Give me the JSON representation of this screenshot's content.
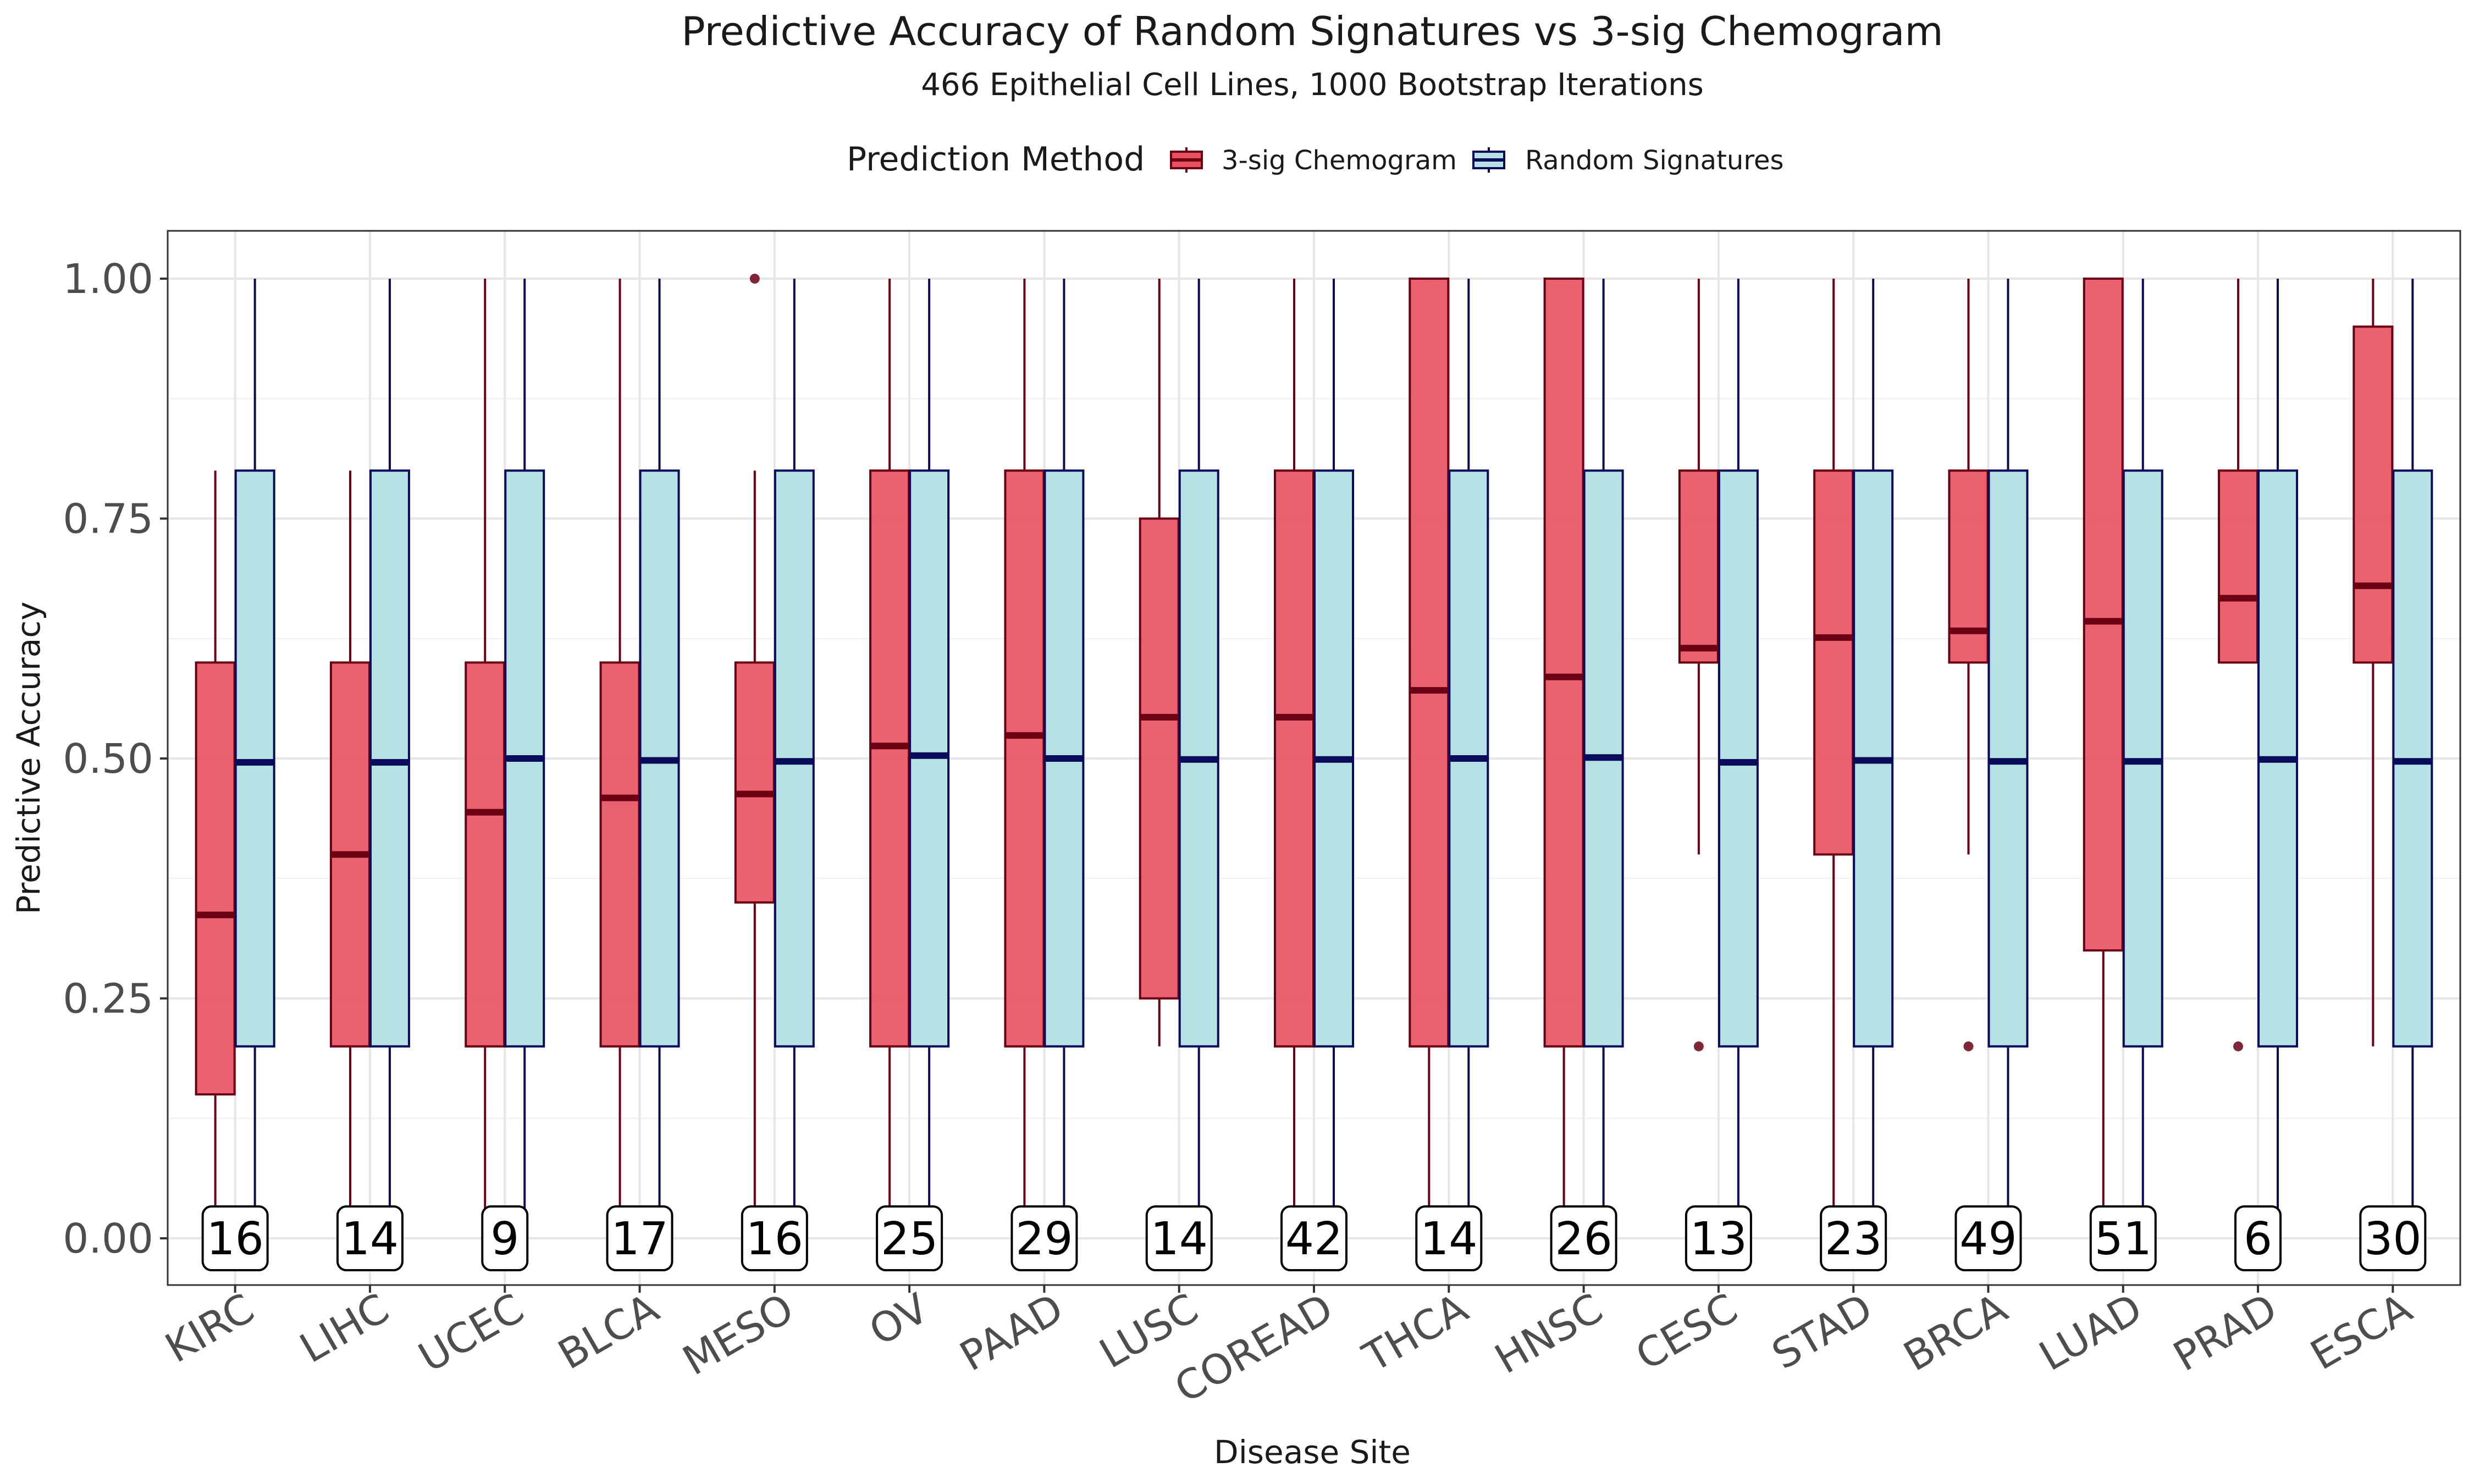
{
  "chart_data": {
    "type": "box",
    "title": "Predictive Accuracy of Random Signatures vs 3-sig Chemogram",
    "subtitle": "466 Epithelial Cell Lines, 1000 Bootstrap Iterations",
    "xlabel": "Disease Site",
    "ylabel": "Predictive Accuracy",
    "ylim": [
      -0.05,
      1.05
    ],
    "yticks": [
      "0.00",
      "0.25",
      "0.50",
      "0.75",
      "1.00"
    ],
    "grid": true,
    "legend": {
      "title": "Prediction Method",
      "placement": "top",
      "entries": [
        "3-sig Chemogram",
        "Random Signatures"
      ]
    },
    "colors": {
      "chemogram_fill": "#e8505f",
      "chemogram_line": "#6b0015",
      "random_fill": "#b7e2e3",
      "random_line": "#0a0a5a"
    },
    "categories": [
      "KIRC",
      "LIHC",
      "UCEC",
      "BLCA",
      "MESO",
      "OV",
      "PAAD",
      "LUSC",
      "COREAD",
      "THCA",
      "HNSC",
      "CESC",
      "STAD",
      "BRCA",
      "LUAD",
      "PRAD",
      "ESCA"
    ],
    "counts": [
      "16",
      "14",
      "9",
      "17",
      "16",
      "25",
      "29",
      "14",
      "42",
      "14",
      "26",
      "13",
      "23",
      "49",
      "51",
      "6",
      "30"
    ],
    "series": [
      {
        "name": "3-sig Chemogram",
        "boxes": [
          {
            "min": 0.0,
            "q1": 0.15,
            "median": 0.337,
            "q3": 0.6,
            "max": 0.8,
            "outliers": []
          },
          {
            "min": 0.0,
            "q1": 0.2,
            "median": 0.4,
            "q3": 0.6,
            "max": 0.8,
            "outliers": []
          },
          {
            "min": 0.0,
            "q1": 0.2,
            "median": 0.444,
            "q3": 0.6,
            "max": 1.0,
            "outliers": []
          },
          {
            "min": 0.0,
            "q1": 0.2,
            "median": 0.459,
            "q3": 0.6,
            "max": 1.0,
            "outliers": []
          },
          {
            "min": 0.0,
            "q1": 0.35,
            "median": 0.463,
            "q3": 0.6,
            "max": 0.8,
            "outliers": [
              1.0
            ]
          },
          {
            "min": 0.0,
            "q1": 0.2,
            "median": 0.513,
            "q3": 0.8,
            "max": 1.0,
            "outliers": []
          },
          {
            "min": 0.0,
            "q1": 0.2,
            "median": 0.524,
            "q3": 0.8,
            "max": 1.0,
            "outliers": []
          },
          {
            "min": 0.2,
            "q1": 0.25,
            "median": 0.543,
            "q3": 0.75,
            "max": 1.0,
            "outliers": []
          },
          {
            "min": 0.0,
            "q1": 0.2,
            "median": 0.543,
            "q3": 0.8,
            "max": 1.0,
            "outliers": []
          },
          {
            "min": 0.0,
            "q1": 0.2,
            "median": 0.571,
            "q3": 1.0,
            "max": 1.0,
            "outliers": []
          },
          {
            "min": 0.0,
            "q1": 0.2,
            "median": 0.585,
            "q3": 1.0,
            "max": 1.0,
            "outliers": []
          },
          {
            "min": 0.4,
            "q1": 0.6,
            "median": 0.615,
            "q3": 0.8,
            "max": 1.0,
            "outliers": [
              0.2
            ]
          },
          {
            "min": 0.0,
            "q1": 0.4,
            "median": 0.626,
            "q3": 0.8,
            "max": 1.0,
            "outliers": []
          },
          {
            "min": 0.4,
            "q1": 0.6,
            "median": 0.633,
            "q3": 0.8,
            "max": 1.0,
            "outliers": [
              0.2
            ]
          },
          {
            "min": 0.0,
            "q1": 0.3,
            "median": 0.643,
            "q3": 1.0,
            "max": 1.0,
            "outliers": []
          },
          {
            "min": 0.6,
            "q1": 0.6,
            "median": 0.667,
            "q3": 0.8,
            "max": 1.0,
            "outliers": [
              0.2
            ]
          },
          {
            "min": 0.2,
            "q1": 0.6,
            "median": 0.68,
            "q3": 0.95,
            "max": 1.0,
            "outliers": []
          }
        ]
      },
      {
        "name": "Random Signatures",
        "boxes": [
          {
            "min": 0.0,
            "q1": 0.2,
            "median": 0.496,
            "q3": 0.8,
            "max": 1.0,
            "outliers": []
          },
          {
            "min": 0.0,
            "q1": 0.2,
            "median": 0.496,
            "q3": 0.8,
            "max": 1.0,
            "outliers": []
          },
          {
            "min": 0.0,
            "q1": 0.2,
            "median": 0.5,
            "q3": 0.8,
            "max": 1.0,
            "outliers": []
          },
          {
            "min": 0.0,
            "q1": 0.2,
            "median": 0.498,
            "q3": 0.8,
            "max": 1.0,
            "outliers": []
          },
          {
            "min": 0.0,
            "q1": 0.2,
            "median": 0.497,
            "q3": 0.8,
            "max": 1.0,
            "outliers": []
          },
          {
            "min": 0.0,
            "q1": 0.2,
            "median": 0.503,
            "q3": 0.8,
            "max": 1.0,
            "outliers": []
          },
          {
            "min": 0.0,
            "q1": 0.2,
            "median": 0.5,
            "q3": 0.8,
            "max": 1.0,
            "outliers": []
          },
          {
            "min": 0.0,
            "q1": 0.2,
            "median": 0.499,
            "q3": 0.8,
            "max": 1.0,
            "outliers": []
          },
          {
            "min": 0.0,
            "q1": 0.2,
            "median": 0.499,
            "q3": 0.8,
            "max": 1.0,
            "outliers": []
          },
          {
            "min": 0.0,
            "q1": 0.2,
            "median": 0.5,
            "q3": 0.8,
            "max": 1.0,
            "outliers": []
          },
          {
            "min": 0.0,
            "q1": 0.2,
            "median": 0.501,
            "q3": 0.8,
            "max": 1.0,
            "outliers": []
          },
          {
            "min": 0.0,
            "q1": 0.2,
            "median": 0.496,
            "q3": 0.8,
            "max": 1.0,
            "outliers": []
          },
          {
            "min": 0.0,
            "q1": 0.2,
            "median": 0.498,
            "q3": 0.8,
            "max": 1.0,
            "outliers": []
          },
          {
            "min": 0.0,
            "q1": 0.2,
            "median": 0.497,
            "q3": 0.8,
            "max": 1.0,
            "outliers": []
          },
          {
            "min": 0.0,
            "q1": 0.2,
            "median": 0.497,
            "q3": 0.8,
            "max": 1.0,
            "outliers": []
          },
          {
            "min": 0.0,
            "q1": 0.2,
            "median": 0.499,
            "q3": 0.8,
            "max": 1.0,
            "outliers": []
          },
          {
            "min": 0.0,
            "q1": 0.2,
            "median": 0.497,
            "q3": 0.8,
            "max": 1.0,
            "outliers": []
          }
        ]
      }
    ]
  }
}
